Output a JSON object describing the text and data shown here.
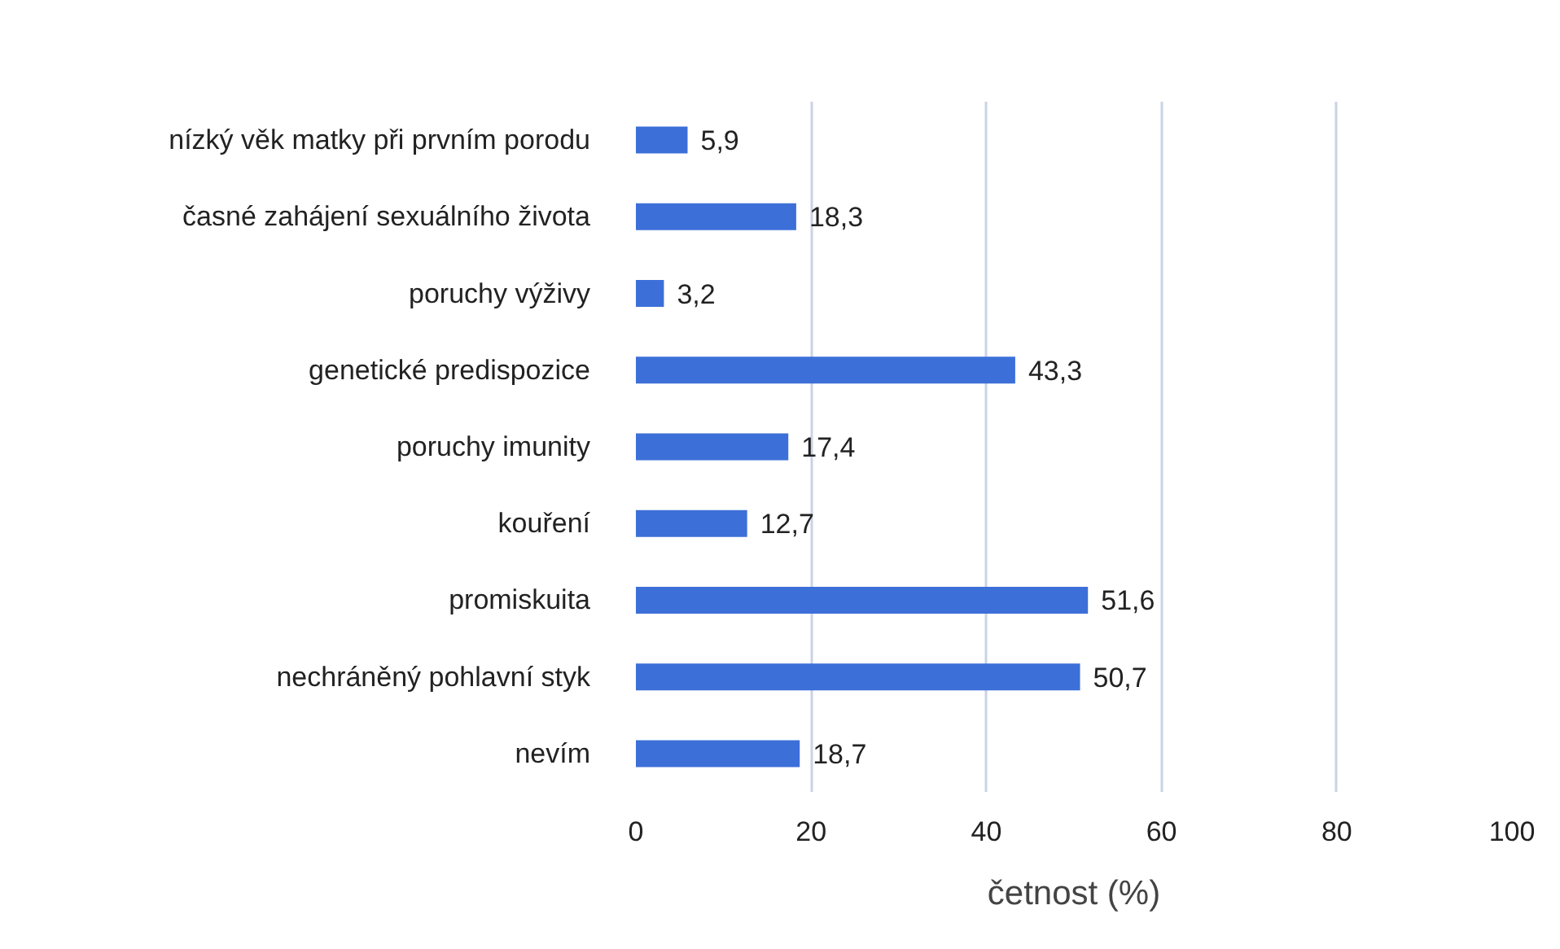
{
  "chart_data": {
    "type": "bar",
    "orientation": "horizontal",
    "xlabel": "četnost (%)",
    "categories": [
      "nízký věk matky při prvním porodu",
      "časné zahájení sexuálního života",
      "poruchy výživy",
      "genetické predispozice",
      "poruchy imunity",
      "kouření",
      "promiskuita",
      "nechráněný pohlavní styk",
      "nevím"
    ],
    "values": [
      5.9,
      18.3,
      3.2,
      43.3,
      17.4,
      12.7,
      51.6,
      50.7,
      18.7
    ],
    "value_labels": [
      "5,9",
      "18,3",
      "3,2",
      "43,3",
      "17,4",
      "12,7",
      "51,6",
      "50,7",
      "18,7"
    ],
    "color": "#3c6fd8",
    "xlim": [
      0,
      100
    ],
    "xticks": [
      0,
      20,
      40,
      60,
      80,
      100
    ],
    "grid": "x"
  }
}
